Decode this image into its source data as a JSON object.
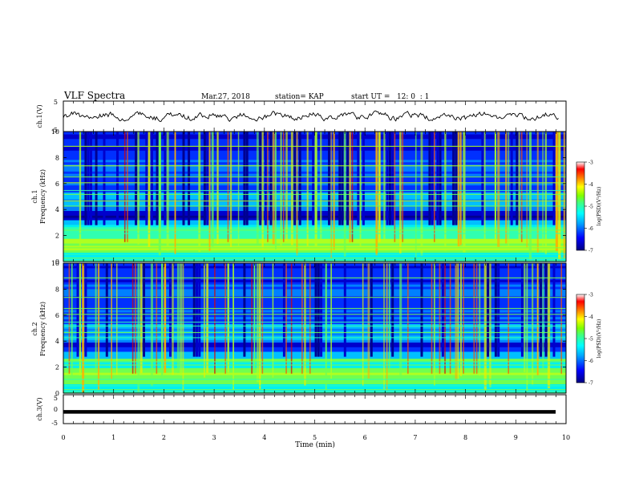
{
  "header": {
    "title": "VLF Spectra",
    "date": "Mar.27, 2018",
    "station": "station= KAP",
    "start": "start UT =   12: 0  : 1"
  },
  "chart_data": [
    {
      "type": "line",
      "name": "ch1-waveform",
      "ylabel": "ch.1(V)",
      "ylim": [
        -5,
        5
      ],
      "y_ticks": [
        "5",
        "-5"
      ],
      "x_range": [
        0,
        9.85
      ],
      "amplitude_range": [
        -1.6,
        1.6
      ]
    },
    {
      "type": "heatmap",
      "name": "ch1-spectrogram",
      "ylabel_channel": "ch.1",
      "ylabel": "Frequency (kHz)",
      "ylim": [
        0,
        10
      ],
      "y_ticks": [
        "0",
        "2",
        "4",
        "6",
        "8",
        "10"
      ],
      "xlim": [
        0,
        10
      ],
      "colorbar": {
        "label": "log(PSD)(V²/Hz)",
        "ticks": [
          "-3",
          "-4",
          "-5",
          "-6",
          "-7"
        ],
        "range": [
          -7,
          -3
        ]
      },
      "colormap": [
        "#000080",
        "#0000ff",
        "#00a0ff",
        "#00ffff",
        "#40ff80",
        "#80ff00",
        "#ffff00",
        "#ff8000",
        "#ff0000",
        "#ffffff"
      ]
    },
    {
      "type": "heatmap",
      "name": "ch2-spectrogram",
      "ylabel_channel": "ch.2",
      "ylabel": "Frequency (kHz)",
      "ylim": [
        0,
        10
      ],
      "y_ticks": [
        "0",
        "2",
        "4",
        "6",
        "8",
        "10"
      ],
      "xlim": [
        0,
        10
      ],
      "colorbar": {
        "label": "log(PSD)(V²/Hz)",
        "ticks": [
          "-3",
          "-4",
          "-5",
          "-6",
          "-7"
        ],
        "range": [
          -7,
          -3
        ]
      }
    },
    {
      "type": "line",
      "name": "ch3-waveform",
      "ylabel": "ch.3(V)",
      "ylim": [
        -5,
        5
      ],
      "y_ticks": [
        "5",
        "0",
        "-5"
      ],
      "constant_value": -1.5
    }
  ],
  "x_axis": {
    "label": "Time (min)",
    "ticks": [
      "0",
      "1",
      "2",
      "3",
      "4",
      "5",
      "6",
      "7",
      "8",
      "9",
      "10"
    ],
    "xlim": [
      0,
      10
    ]
  }
}
